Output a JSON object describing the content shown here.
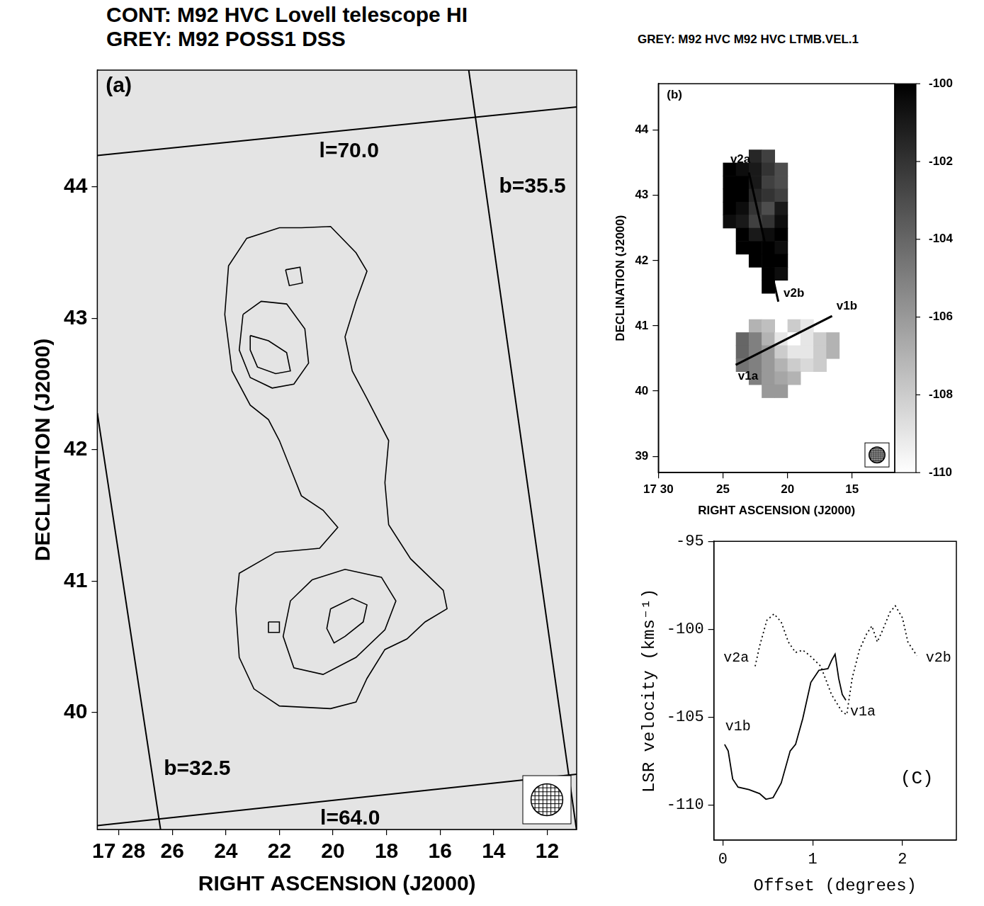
{
  "chart_data": [
    {
      "type": "contour",
      "panel_label": "(a)",
      "title": [
        "CONT: M92 HVC Lovell telescope HI",
        "GREY: M92 POSS1 DSS"
      ],
      "x_label": "RIGHT ASCENSION (J2000)",
      "y_label": "DECLINATION (J2000)",
      "xlim": [
        28.8,
        10.9
      ],
      "ylim": [
        39.11,
        44.89
      ],
      "xticks": [
        {
          "value": 28,
          "label": "17 28"
        },
        26,
        24,
        22,
        20,
        18,
        16,
        14,
        12
      ],
      "yticks": [
        40,
        41,
        42,
        43,
        44
      ],
      "grid": false,
      "contours": [
        [
          [
            21.18,
            43.69
          ],
          [
            20.09,
            43.7
          ],
          [
            19.14,
            43.5
          ],
          [
            18.73,
            43.36
          ],
          [
            19.14,
            43.13
          ],
          [
            19.55,
            42.86
          ],
          [
            19.28,
            42.6
          ],
          [
            18.73,
            42.39
          ],
          [
            17.92,
            42.07
          ],
          [
            18.06,
            41.75
          ],
          [
            17.92,
            41.43
          ],
          [
            17.1,
            41.17
          ],
          [
            15.88,
            40.93
          ],
          [
            15.74,
            40.79
          ],
          [
            16.56,
            40.69
          ],
          [
            17.24,
            40.56
          ],
          [
            18.06,
            40.48
          ],
          [
            18.73,
            40.26
          ],
          [
            19.14,
            40.08
          ],
          [
            20.09,
            40.03
          ],
          [
            22.0,
            40.05
          ],
          [
            22.95,
            40.18
          ],
          [
            23.5,
            40.42
          ],
          [
            23.63,
            40.79
          ],
          [
            23.5,
            41.06
          ],
          [
            22.14,
            41.22
          ],
          [
            20.5,
            41.25
          ],
          [
            19.82,
            41.41
          ],
          [
            20.37,
            41.54
          ],
          [
            21.18,
            41.65
          ],
          [
            21.59,
            41.86
          ],
          [
            22.0,
            42.07
          ],
          [
            22.41,
            42.23
          ],
          [
            23.09,
            42.34
          ],
          [
            23.77,
            42.6
          ],
          [
            24.04,
            43.03
          ],
          [
            23.9,
            43.4
          ],
          [
            23.22,
            43.61
          ],
          [
            22.0,
            43.69
          ]
        ],
        [
          [
            23.36,
            43.03
          ],
          [
            22.68,
            43.13
          ],
          [
            21.73,
            43.11
          ],
          [
            21.05,
            42.92
          ],
          [
            20.91,
            42.66
          ],
          [
            21.46,
            42.5
          ],
          [
            22.27,
            42.47
          ],
          [
            23.09,
            42.55
          ],
          [
            23.5,
            42.76
          ]
        ],
        [
          [
            23.09,
            42.87
          ],
          [
            22.41,
            42.83
          ],
          [
            21.73,
            42.74
          ],
          [
            21.59,
            42.6
          ],
          [
            22.14,
            42.58
          ],
          [
            22.82,
            42.63
          ],
          [
            23.09,
            42.76
          ]
        ],
        [
          [
            20.78,
            41.01
          ],
          [
            19.55,
            41.09
          ],
          [
            18.19,
            41.03
          ],
          [
            17.65,
            40.85
          ],
          [
            18.06,
            40.63
          ],
          [
            19.14,
            40.42
          ],
          [
            20.37,
            40.29
          ],
          [
            21.46,
            40.34
          ],
          [
            21.86,
            40.58
          ],
          [
            21.59,
            40.85
          ]
        ],
        [
          [
            20.09,
            40.79
          ],
          [
            19.28,
            40.87
          ],
          [
            18.73,
            40.82
          ],
          [
            18.87,
            40.69
          ],
          [
            19.55,
            40.58
          ],
          [
            19.96,
            40.53
          ],
          [
            20.23,
            40.64
          ]
        ],
        [
          [
            21.77,
            43.37
          ],
          [
            21.23,
            43.39
          ],
          [
            21.14,
            43.27
          ],
          [
            21.63,
            43.25
          ]
        ],
        [
          [
            22.41,
            40.69
          ],
          [
            22.0,
            40.69
          ],
          [
            22.0,
            40.61
          ],
          [
            22.41,
            40.61
          ]
        ]
      ],
      "coordinate_lines": [
        {
          "label": "l=70.0",
          "points": [
            [
              28.8,
              44.24
            ],
            [
              10.9,
              44.61
            ]
          ],
          "label_at": [
            19.4,
            44.27
          ]
        },
        {
          "label": "l=64.0",
          "points": [
            [
              28.8,
              39.14
            ],
            [
              10.9,
              39.53
            ]
          ],
          "label_at": [
            19.36,
            39.19
          ]
        },
        {
          "label": "b=35.5",
          "points": [
            [
              14.93,
              44.89
            ],
            [
              10.9,
              39.1
            ]
          ],
          "label_at": [
            12.55,
            44.0
          ]
        },
        {
          "label": "b=32.5",
          "points": [
            [
              28.8,
              42.28
            ],
            [
              26.43,
              39.1
            ]
          ],
          "label_at": [
            25.07,
            39.57
          ]
        }
      ]
    },
    {
      "type": "heatmap",
      "panel_label": "(b)",
      "title": "GREY: M92 HVC  M92 HVC LTMB.VEL.1",
      "x_label": "RIGHT ASCENSION (J2000)",
      "y_label": "DECLINATION (J2000)",
      "xlim": [
        30,
        11.7
      ],
      "ylim": [
        38.75,
        44.71
      ],
      "xticks": [
        {
          "value": 30,
          "label": "17 30"
        },
        25,
        20,
        15
      ],
      "yticks": [
        39,
        40,
        41,
        42,
        43,
        44
      ],
      "grid": false,
      "cells": [
        [
          22.5,
          43.6,
          -101.5
        ],
        [
          21.5,
          43.6,
          -102.5
        ],
        [
          24.5,
          43.4,
          -100
        ],
        [
          23.5,
          43.4,
          -100.5
        ],
        [
          22.5,
          43.4,
          -101
        ],
        [
          21.5,
          43.4,
          -102
        ],
        [
          20.5,
          43.4,
          -103
        ],
        [
          24.5,
          43.2,
          -100
        ],
        [
          23.5,
          43.2,
          -100
        ],
        [
          22.5,
          43.2,
          -101
        ],
        [
          21.5,
          43.2,
          -102.5
        ],
        [
          20.5,
          43.2,
          -103
        ],
        [
          24.5,
          43.0,
          -100
        ],
        [
          23.5,
          43.0,
          -100
        ],
        [
          22.5,
          43.0,
          -101.5
        ],
        [
          21.5,
          43.0,
          -102
        ],
        [
          20.5,
          43.0,
          -102.5
        ],
        [
          24.5,
          42.8,
          -100
        ],
        [
          23.5,
          42.8,
          -100.5
        ],
        [
          22.5,
          42.8,
          -102
        ],
        [
          21.5,
          42.8,
          -103
        ],
        [
          20.5,
          42.8,
          -101
        ],
        [
          24.5,
          42.6,
          -100.5
        ],
        [
          23.5,
          42.6,
          -101
        ],
        [
          22.5,
          42.6,
          -102.5
        ],
        [
          21.5,
          42.6,
          -102
        ],
        [
          20.5,
          42.6,
          -100.5
        ],
        [
          23.5,
          42.4,
          -100
        ],
        [
          22.5,
          42.4,
          -101
        ],
        [
          21.5,
          42.4,
          -100.5
        ],
        [
          20.5,
          42.4,
          -100
        ],
        [
          23.5,
          42.2,
          -100
        ],
        [
          22.5,
          42.2,
          -100
        ],
        [
          21.5,
          42.2,
          -100
        ],
        [
          20.5,
          42.2,
          -100.5
        ],
        [
          22.5,
          42.0,
          -100
        ],
        [
          21.5,
          42.0,
          -100
        ],
        [
          20.5,
          42.0,
          -100
        ],
        [
          21.5,
          41.8,
          -100
        ],
        [
          20.5,
          41.8,
          -100.5
        ],
        [
          21.5,
          41.6,
          -100
        ],
        [
          22.5,
          41.0,
          -107
        ],
        [
          21.5,
          41.0,
          -107.5
        ],
        [
          19.5,
          41.0,
          -108
        ],
        [
          18.5,
          41.0,
          -109
        ],
        [
          23.5,
          40.8,
          -104
        ],
        [
          22.5,
          40.8,
          -105
        ],
        [
          21.5,
          40.8,
          -107
        ],
        [
          20.5,
          40.8,
          -109
        ],
        [
          19.5,
          40.8,
          -110
        ],
        [
          18.5,
          40.8,
          -109
        ],
        [
          17.5,
          40.8,
          -108
        ],
        [
          16.5,
          40.8,
          -107
        ],
        [
          23.5,
          40.6,
          -104
        ],
        [
          22.5,
          40.6,
          -105
        ],
        [
          21.5,
          40.6,
          -106
        ],
        [
          20.5,
          40.6,
          -108
        ],
        [
          19.5,
          40.6,
          -109
        ],
        [
          18.5,
          40.6,
          -109
        ],
        [
          17.5,
          40.6,
          -108
        ],
        [
          16.5,
          40.6,
          -107
        ],
        [
          23.5,
          40.4,
          -104.5
        ],
        [
          22.5,
          40.4,
          -105
        ],
        [
          21.5,
          40.4,
          -106
        ],
        [
          20.5,
          40.4,
          -107
        ],
        [
          19.5,
          40.4,
          -108
        ],
        [
          18.5,
          40.4,
          -108.5
        ],
        [
          17.5,
          40.4,
          -108
        ],
        [
          22.5,
          40.2,
          -105
        ],
        [
          21.5,
          40.2,
          -106
        ],
        [
          20.5,
          40.2,
          -106.5
        ],
        [
          19.5,
          40.2,
          -107
        ],
        [
          21.5,
          40.0,
          -106
        ],
        [
          20.5,
          40.0,
          -106
        ]
      ],
      "colorbar": {
        "range": [
          -110,
          -100
        ],
        "ticks": [
          -100,
          -102,
          -104,
          -106,
          -108,
          -110
        ]
      },
      "cuts": [
        {
          "points": [
            [
              22.99,
              43.35
            ],
            [
              20.71,
              41.37
            ]
          ],
          "labels": [
            {
              "text": "v2a",
              "x": 23.65,
              "y": 43.55
            },
            {
              "text": "v2b",
              "x": 19.5,
              "y": 41.5
            }
          ]
        },
        {
          "points": [
            [
              24.01,
              40.4
            ],
            [
              16.55,
              41.15
            ]
          ],
          "labels": [
            {
              "text": "v1a",
              "x": 23.05,
              "y": 40.22
            },
            {
              "text": "v1b",
              "x": 15.4,
              "y": 41.3
            }
          ]
        }
      ]
    },
    {
      "type": "line",
      "x_label": "Offset (degrees)",
      "y_label": "LSR velocity (kms⁻¹)",
      "xlim": [
        -0.1,
        2.6
      ],
      "ylim": [
        -112,
        -95
      ],
      "xticks": [
        0,
        1,
        2
      ],
      "yticks": [
        -110,
        -105,
        -100,
        -95
      ],
      "grid": false,
      "series": [
        {
          "color": "#000000",
          "line_style": "solid",
          "x": [
            0.02,
            0.06,
            0.11,
            0.17,
            0.29,
            0.41,
            0.48,
            0.56,
            0.65,
            0.75,
            0.81,
            0.89,
            0.98,
            1.07,
            1.17,
            1.21,
            1.25,
            1.29,
            1.33,
            1.37
          ],
          "values": [
            -106.56,
            -106.93,
            -108.53,
            -108.99,
            -109.13,
            -109.36,
            -109.68,
            -109.59,
            -108.76,
            -106.93,
            -106.56,
            -105.09,
            -103.03,
            -102.34,
            -102.25,
            -101.79,
            -101.42,
            -102.8,
            -103.72,
            -104.04
          ]
        },
        {
          "color": "#000000",
          "line_style": "dotted",
          "x": [
            0.36,
            0.41,
            0.49,
            0.57,
            0.65,
            0.73,
            0.81,
            0.89,
            0.97,
            1.09,
            1.21,
            1.33,
            1.38,
            1.44,
            1.52,
            1.6,
            1.66,
            1.72,
            1.78,
            1.86,
            1.92,
            2.0,
            2.06,
            2.16
          ],
          "values": [
            -102.11,
            -100.96,
            -99.5,
            -99.13,
            -99.59,
            -100.73,
            -101.33,
            -101.19,
            -101.51,
            -102.11,
            -103.72,
            -104.72,
            -104.86,
            -102.8,
            -101.19,
            -100.28,
            -99.82,
            -100.73,
            -100.05,
            -99.04,
            -98.67,
            -99.36,
            -100.73,
            -101.51
          ]
        }
      ],
      "annotations": [
        {
          "text": "v2a",
          "x": 0.15,
          "y": -101.65
        },
        {
          "text": "v1b",
          "x": 0.17,
          "y": -105.55
        },
        {
          "text": "v1a",
          "x": 1.56,
          "y": -104.7
        },
        {
          "text": "v2b",
          "x": 2.4,
          "y": -101.65
        },
        {
          "text": "(C)",
          "x": 2.16,
          "y": -108.5
        }
      ]
    }
  ]
}
